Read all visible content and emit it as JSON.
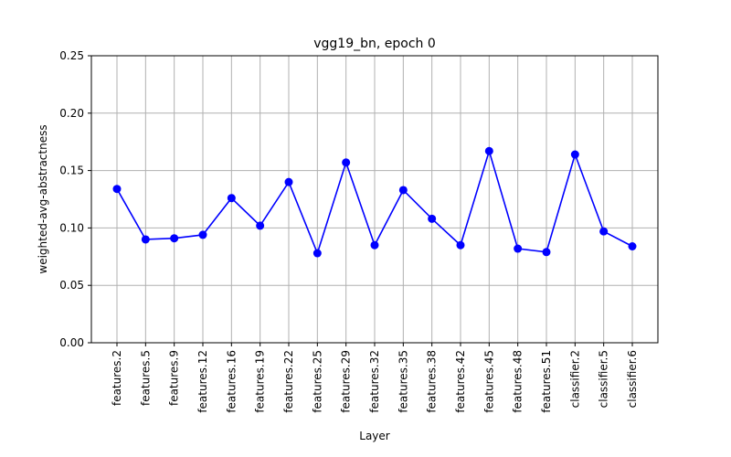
{
  "chart_data": {
    "type": "line",
    "title": "vgg19_bn, epoch 0",
    "xlabel": "Layer",
    "ylabel": "weighted-avg-abstractness",
    "categories": [
      "features.2",
      "features.5",
      "features.9",
      "features.12",
      "features.16",
      "features.19",
      "features.22",
      "features.25",
      "features.29",
      "features.32",
      "features.35",
      "features.38",
      "features.42",
      "features.45",
      "features.48",
      "features.51",
      "classifier.2",
      "classifier.5",
      "classifier.6"
    ],
    "values": [
      0.134,
      0.09,
      0.091,
      0.094,
      0.126,
      0.102,
      0.14,
      0.078,
      0.157,
      0.085,
      0.133,
      0.108,
      0.085,
      0.167,
      0.082,
      0.079,
      0.164,
      0.097,
      0.084
    ],
    "ylim": [
      0,
      0.25
    ],
    "yticks": [
      "0.00",
      "0.05",
      "0.10",
      "0.15",
      "0.20",
      "0.25"
    ],
    "grid": true,
    "line_color": "#0000ff",
    "marker": "circle"
  }
}
